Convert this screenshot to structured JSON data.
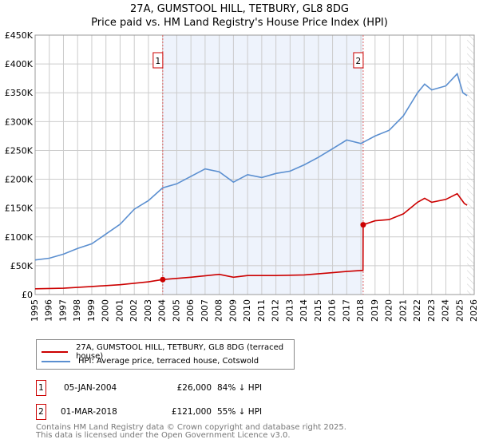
{
  "title_line1": "27A, GUMSTOOL HILL, TETBURY, GL8 8DG",
  "title_line2": "Price paid vs. HM Land Registry's House Price Index (HPI)",
  "chart_data": {
    "type": "line",
    "ylim": [
      0,
      450000
    ],
    "xlim": [
      1995,
      2026
    ],
    "yticks": [
      0,
      50000,
      100000,
      150000,
      200000,
      250000,
      300000,
      350000,
      400000,
      450000
    ],
    "ytick_labels": [
      "£0",
      "£50K",
      "£100K",
      "£150K",
      "£200K",
      "£250K",
      "£300K",
      "£350K",
      "£400K",
      "£450K"
    ],
    "xticks": [
      1995,
      1996,
      1997,
      1998,
      1999,
      2000,
      2001,
      2002,
      2003,
      2004,
      2005,
      2006,
      2007,
      2008,
      2009,
      2010,
      2011,
      2012,
      2013,
      2014,
      2015,
      2016,
      2017,
      2018,
      2019,
      2020,
      2021,
      2022,
      2023,
      2024,
      2025,
      2026
    ],
    "grid": true,
    "series": [
      {
        "name": "27A, GUMSTOOL HILL, TETBURY, GL8 8DG (terraced house)",
        "color": "#cc0000",
        "x": [
          1995,
          1997,
          1999,
          2001,
          2003,
          2004.01,
          2006,
          2008,
          2009,
          2010,
          2012,
          2014,
          2016,
          2017,
          2018.15,
          2018.16,
          2019,
          2020,
          2021,
          2022,
          2022.5,
          2023,
          2024,
          2024.8,
          2025.3,
          2025.5
        ],
        "y": [
          10000,
          11000,
          14000,
          17000,
          22000,
          26000,
          30000,
          35000,
          30000,
          33000,
          33000,
          34000,
          38000,
          40000,
          42000,
          121000,
          128000,
          130000,
          140000,
          160000,
          167000,
          160000,
          165000,
          175000,
          158000,
          155000
        ]
      },
      {
        "name": "HPI: Average price, terraced house, Cotswold",
        "color": "#5b8fd0",
        "x": [
          1995,
          1996,
          1997,
          1998,
          1999,
          2000,
          2001,
          2002,
          2003,
          2004,
          2005,
          2006,
          2007,
          2008,
          2009,
          2010,
          2011,
          2012,
          2013,
          2014,
          2015,
          2016,
          2017,
          2018,
          2019,
          2020,
          2021,
          2022,
          2022.5,
          2023,
          2024,
          2024.8,
          2025.2,
          2025.5
        ],
        "y": [
          60000,
          63000,
          70000,
          80000,
          88000,
          105000,
          122000,
          148000,
          163000,
          185000,
          192000,
          205000,
          218000,
          213000,
          195000,
          208000,
          203000,
          210000,
          214000,
          225000,
          238000,
          253000,
          268000,
          262000,
          275000,
          285000,
          310000,
          350000,
          365000,
          355000,
          362000,
          383000,
          350000,
          345000
        ]
      }
    ],
    "sales": [
      {
        "label": "1",
        "x": 2004.01,
        "y": 26000
      },
      {
        "label": "2",
        "x": 2018.16,
        "y": 121000
      }
    ]
  },
  "legend": [
    {
      "label": "27A, GUMSTOOL HILL, TETBURY, GL8 8DG (terraced house)",
      "color": "#cc0000"
    },
    {
      "label": "HPI: Average price, terraced house, Cotswold",
      "color": "#5b8fd0"
    }
  ],
  "transactions": [
    {
      "num": "1",
      "date": "05-JAN-2004",
      "price": "£26,000",
      "hpi": "84% ↓ HPI"
    },
    {
      "num": "2",
      "date": "01-MAR-2018",
      "price": "£121,000",
      "hpi": "55% ↓ HPI"
    }
  ],
  "footer_line1": "Contains HM Land Registry data © Crown copyright and database right 2025.",
  "footer_line2": "This data is licensed under the Open Government Licence v3.0."
}
